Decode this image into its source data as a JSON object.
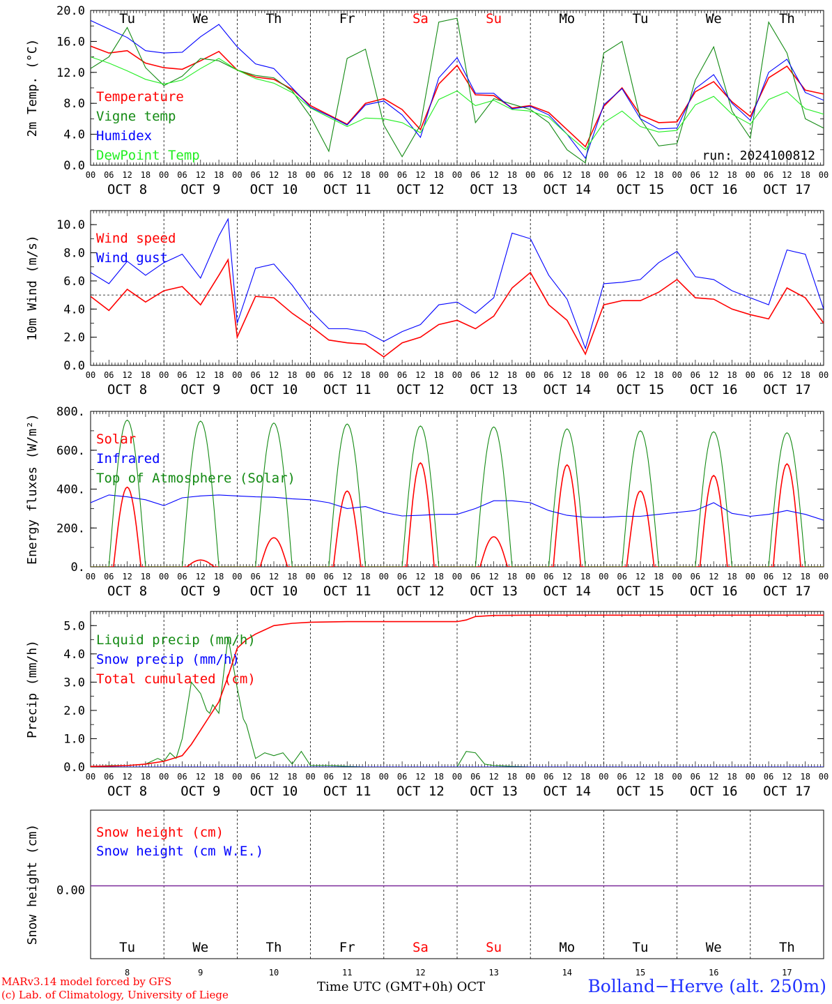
{
  "x_axis": {
    "hour_labels": [
      "00",
      "06",
      "12",
      "18"
    ],
    "final_hour_label": "00",
    "date_labels": [
      "OCT  8",
      "OCT  9",
      "OCT 10",
      "OCT 11",
      "OCT 12",
      "OCT 13",
      "OCT 14",
      "OCT 15",
      "OCT 16",
      "OCT 17"
    ],
    "weekdays": [
      "Tu",
      "We",
      "Th",
      "Fr",
      "Sa",
      "Su",
      "Mo",
      "Tu",
      "We",
      "Th"
    ],
    "weekend_days": [
      "Sa",
      "Su"
    ],
    "bottom_day_numbers": [
      "8",
      "9",
      "10",
      "11",
      "12",
      "13",
      "14",
      "15",
      "16",
      "17"
    ],
    "title": "Time UTC (GMT+0h) OCT"
  },
  "footer": {
    "model_line1": "MARv3.14 model forced by GFS",
    "model_line2": "(c) Lab. of Climatology, University of Liege",
    "station": "Bolland−Herve (alt. 250m)"
  },
  "colors": {
    "red": "#ff0000",
    "green": "#138a13",
    "blue": "#0000ff",
    "light_green": "#22ee22",
    "purple": "#7a2a9a",
    "station_blue": "#2233ff"
  },
  "chart_data": [
    {
      "type": "line",
      "x_unit": "hours since 2024-10-08 00 UTC",
      "x_range": [
        0,
        240
      ],
      "ylabel": "2m Temp. (°C)",
      "ylim": [
        0,
        20
      ],
      "yticks": [
        "0.0",
        "4.0",
        "8.0",
        "12.0",
        "16.0",
        "20.0"
      ],
      "annotation": "run: 2024100812",
      "series": [
        {
          "name": "Temperature",
          "color": "red",
          "x": [
            0,
            6,
            12,
            18,
            24,
            30,
            36,
            42,
            48,
            54,
            60,
            66,
            72,
            78,
            84,
            90,
            96,
            102,
            108,
            114,
            120,
            126,
            132,
            138,
            144,
            150,
            156,
            162,
            168,
            174,
            180,
            186,
            192,
            198,
            204,
            210,
            216,
            222,
            228,
            234,
            240
          ],
          "y": [
            15.4,
            14.5,
            14.8,
            13.2,
            12.6,
            12.4,
            13.5,
            14.7,
            12.3,
            11.4,
            11.1,
            9.8,
            7.7,
            6.5,
            5.3,
            8.0,
            8.6,
            7.2,
            4.6,
            10.5,
            12.9,
            9.1,
            9.0,
            7.4,
            7.7,
            6.8,
            4.6,
            2.4,
            7.6,
            10.0,
            6.5,
            5.5,
            5.6,
            9.5,
            10.8,
            8.2,
            6.3,
            11.3,
            12.8,
            9.7,
            9.2
          ]
        },
        {
          "name": "Vigne temp",
          "color": "green",
          "x": [
            0,
            6,
            12,
            18,
            24,
            30,
            36,
            42,
            48,
            54,
            60,
            66,
            72,
            78,
            84,
            90,
            96,
            102,
            108,
            114,
            120,
            126,
            132,
            138,
            144,
            150,
            156,
            162,
            168,
            174,
            180,
            186,
            192,
            198,
            204,
            210,
            216,
            222,
            228,
            234,
            240
          ],
          "y": [
            12.5,
            14.0,
            17.8,
            12.6,
            10.3,
            11.5,
            13.8,
            13.5,
            12.3,
            11.6,
            11.3,
            9.6,
            6.3,
            1.8,
            13.8,
            15.0,
            5.2,
            1.1,
            5.2,
            18.5,
            19.0,
            5.5,
            8.6,
            7.9,
            7.2,
            5.5,
            2.0,
            0.3,
            14.5,
            16.0,
            6.0,
            2.5,
            2.8,
            11.0,
            15.3,
            7.0,
            3.5,
            18.5,
            14.5,
            6.0,
            4.8
          ]
        },
        {
          "name": "Humidex",
          "color": "blue",
          "x": [
            0,
            6,
            12,
            18,
            24,
            30,
            36,
            42,
            48,
            54,
            60,
            66,
            72,
            78,
            84,
            90,
            96,
            102,
            108,
            114,
            120,
            126,
            132,
            138,
            144,
            150,
            156,
            162,
            168,
            174,
            180,
            186,
            192,
            198,
            204,
            210,
            216,
            222,
            228,
            234,
            240
          ],
          "y": [
            18.7,
            17.6,
            16.5,
            14.8,
            14.5,
            14.6,
            16.6,
            18.2,
            15.3,
            13.1,
            12.5,
            10.0,
            7.5,
            6.4,
            5.2,
            7.8,
            8.3,
            6.5,
            3.6,
            11.3,
            13.9,
            9.3,
            9.3,
            7.3,
            7.6,
            6.5,
            4.0,
            0.9,
            7.8,
            9.9,
            6.0,
            4.7,
            4.8,
            9.9,
            11.7,
            8.0,
            5.8,
            12.0,
            13.7,
            9.4,
            8.4
          ]
        },
        {
          "name": "DewPoint Temp",
          "color": "light_green",
          "x": [
            0,
            6,
            12,
            18,
            24,
            30,
            36,
            42,
            48,
            54,
            60,
            66,
            72,
            78,
            84,
            90,
            96,
            102,
            108,
            114,
            120,
            126,
            132,
            138,
            144,
            150,
            156,
            162,
            168,
            174,
            180,
            186,
            192,
            198,
            204,
            210,
            216,
            222,
            228,
            234,
            240
          ],
          "y": [
            14.0,
            13.2,
            12.2,
            11.1,
            10.5,
            11.0,
            12.5,
            13.8,
            12.3,
            11.2,
            10.6,
            9.4,
            7.4,
            6.2,
            5.0,
            6.1,
            6.0,
            5.5,
            4.2,
            8.5,
            9.6,
            7.7,
            8.4,
            7.2,
            7.0,
            6.2,
            4.0,
            2.0,
            5.5,
            7.0,
            5.0,
            4.3,
            4.5,
            7.8,
            8.9,
            6.6,
            5.3,
            8.5,
            9.5,
            7.3,
            6.6
          ]
        }
      ]
    },
    {
      "type": "line",
      "x_unit": "hours since 2024-10-08 00 UTC",
      "x_range": [
        0,
        240
      ],
      "ylabel": "10m Wind (m/s)",
      "ylim": [
        0,
        11
      ],
      "yticks": [
        "0.0",
        "2.0",
        "4.0",
        "6.0",
        "8.0",
        "10.0"
      ],
      "reference_line": 5,
      "series": [
        {
          "name": "Wind speed",
          "color": "red",
          "x": [
            0,
            6,
            12,
            18,
            24,
            30,
            36,
            42,
            45,
            48,
            54,
            60,
            66,
            72,
            78,
            84,
            90,
            96,
            102,
            108,
            114,
            120,
            126,
            132,
            138,
            144,
            150,
            156,
            162,
            168,
            174,
            180,
            186,
            192,
            198,
            204,
            210,
            216,
            222,
            228,
            234,
            240
          ],
          "y": [
            4.9,
            3.9,
            5.4,
            4.5,
            5.3,
            5.6,
            4.3,
            6.4,
            7.5,
            2.0,
            4.9,
            4.8,
            3.7,
            2.8,
            1.8,
            1.6,
            1.5,
            0.6,
            1.6,
            2.0,
            2.9,
            3.2,
            2.6,
            3.5,
            5.5,
            6.6,
            4.3,
            3.2,
            0.8,
            4.3,
            4.6,
            4.6,
            5.2,
            6.1,
            4.8,
            4.7,
            4.0,
            3.6,
            3.3,
            5.5,
            4.8,
            3.0
          ]
        },
        {
          "name": "Wind gust",
          "color": "blue",
          "x": [
            0,
            6,
            12,
            18,
            24,
            30,
            36,
            42,
            45,
            48,
            54,
            60,
            66,
            72,
            78,
            84,
            90,
            96,
            102,
            108,
            114,
            120,
            126,
            132,
            138,
            144,
            150,
            156,
            162,
            168,
            174,
            180,
            186,
            192,
            198,
            204,
            210,
            216,
            222,
            228,
            234,
            240
          ],
          "y": [
            6.6,
            5.8,
            7.4,
            6.4,
            7.3,
            7.9,
            6.2,
            9.2,
            10.4,
            3.0,
            6.9,
            7.2,
            5.7,
            3.9,
            2.6,
            2.6,
            2.4,
            1.7,
            2.4,
            2.9,
            4.3,
            4.5,
            3.7,
            4.8,
            9.4,
            9.0,
            6.4,
            4.7,
            1.2,
            5.8,
            5.9,
            6.1,
            7.3,
            8.1,
            6.3,
            6.1,
            5.3,
            4.8,
            4.3,
            8.2,
            7.9,
            4.0
          ]
        }
      ]
    },
    {
      "type": "line",
      "x_unit": "hours since 2024-10-08 00 UTC",
      "x_range": [
        0,
        240
      ],
      "ylabel": "Energy fluxes (W/m²)",
      "ylim": [
        0,
        800
      ],
      "yticks": [
        "0.",
        "200.",
        "400.",
        "600.",
        "800."
      ],
      "series": [
        {
          "name": "Solar",
          "color": "red",
          "daily_peaks_w_m2": [
            410,
            35,
            150,
            390,
            535,
            155,
            525,
            390,
            470,
            530
          ]
        },
        {
          "name": "Infrared",
          "color": "blue",
          "x": [
            0,
            6,
            12,
            18,
            24,
            30,
            36,
            42,
            48,
            54,
            60,
            66,
            72,
            78,
            84,
            90,
            96,
            102,
            108,
            114,
            120,
            126,
            132,
            138,
            144,
            150,
            156,
            162,
            168,
            174,
            180,
            186,
            192,
            198,
            204,
            210,
            216,
            222,
            228,
            234,
            240
          ],
          "y": [
            330,
            370,
            360,
            345,
            315,
            355,
            365,
            370,
            365,
            360,
            358,
            350,
            345,
            330,
            300,
            310,
            280,
            262,
            265,
            270,
            270,
            300,
            340,
            340,
            330,
            290,
            265,
            255,
            255,
            260,
            260,
            270,
            280,
            290,
            330,
            275,
            260,
            270,
            290,
            270,
            240
          ]
        },
        {
          "name": "Top of Atmosphere (Solar)",
          "color": "green",
          "daily_peaks_w_m2": [
            755,
            750,
            740,
            735,
            725,
            720,
            710,
            700,
            695,
            690
          ]
        }
      ]
    },
    {
      "type": "line",
      "x_unit": "hours since 2024-10-08 00 UTC",
      "x_range": [
        0,
        240
      ],
      "ylabel": "Precip (mm/h)",
      "ylim": [
        0,
        5.5
      ],
      "yticks": [
        "0.0",
        "1.0",
        "2.0",
        "3.0",
        "4.0",
        "5.0"
      ],
      "series": [
        {
          "name": "Liquid precip (mm/h)",
          "color": "green",
          "x": [
            0,
            6,
            12,
            18,
            22,
            24,
            26,
            28,
            30,
            33,
            36,
            38,
            39,
            40,
            42,
            45,
            48,
            50,
            51,
            54,
            57,
            60,
            63,
            66,
            69,
            72,
            75,
            78,
            84,
            90,
            120,
            123,
            126,
            129,
            132,
            138,
            144,
            240
          ],
          "y": [
            0,
            0.05,
            0.05,
            0.1,
            0.3,
            0.2,
            0.5,
            0.3,
            1.0,
            3.0,
            2.6,
            2.0,
            1.9,
            2.2,
            1.9,
            4.6,
            2.8,
            1.7,
            1.5,
            0.3,
            0.5,
            0.4,
            0.5,
            0.1,
            0.55,
            0.05,
            0.05,
            0.05,
            0.02,
            0,
            0,
            0.55,
            0.5,
            0.1,
            0.05,
            0.02,
            0,
            0
          ]
        },
        {
          "name": "Snow precip (mm/h)",
          "color": "blue",
          "x": [
            0,
            240
          ],
          "y": [
            0,
            0
          ]
        },
        {
          "name": "Total cumulated (cm)",
          "color": "red",
          "x": [
            0,
            6,
            12,
            18,
            24,
            30,
            33,
            36,
            39,
            42,
            45,
            48,
            51,
            54,
            57,
            60,
            66,
            72,
            84,
            96,
            108,
            120,
            123,
            126,
            132,
            144,
            240
          ],
          "y": [
            0.02,
            0.03,
            0.05,
            0.1,
            0.2,
            0.4,
            0.8,
            1.3,
            1.8,
            2.3,
            3.2,
            4.2,
            4.5,
            4.7,
            4.85,
            5.0,
            5.08,
            5.12,
            5.14,
            5.14,
            5.14,
            5.14,
            5.2,
            5.32,
            5.36,
            5.37,
            5.37
          ]
        }
      ]
    },
    {
      "type": "line",
      "x_unit": "hours since 2024-10-08 00 UTC",
      "x_range": [
        0,
        240
      ],
      "ylabel": "Snow height (cm)",
      "yticks": [
        "0.00"
      ],
      "series": [
        {
          "name": "Snow height (cm)",
          "color": "red",
          "x": [
            0,
            240
          ],
          "y": [
            0,
            0
          ]
        },
        {
          "name": "Snow height (cm W.E.)",
          "color": "blue",
          "x": [
            0,
            240
          ],
          "y": [
            0,
            0
          ]
        }
      ]
    }
  ]
}
